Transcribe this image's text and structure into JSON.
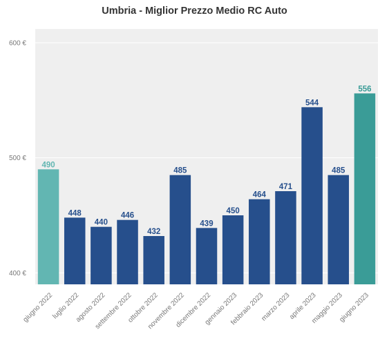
{
  "chart_data": {
    "type": "bar",
    "title": "Umbria - Miglior Prezzo Medio RC Auto",
    "xlabel": "",
    "ylabel": "",
    "categories": [
      "giugno 2022",
      "luglio 2022",
      "agosto 2022",
      "settembre 2022",
      "ottobre 2022",
      "novembre 2022",
      "dicembre 2022",
      "gennaio 2023",
      "febbraio 2023",
      "marzo 2023",
      "aprile 2023",
      "maggio 2023",
      "giugno 2023"
    ],
    "values": [
      490,
      448,
      440,
      446,
      432,
      485,
      439,
      450,
      464,
      471,
      544,
      485,
      556
    ],
    "data_labels": [
      "490",
      "448",
      "440",
      "446",
      "432",
      "485",
      "439",
      "450",
      "464",
      "471",
      "544",
      "485",
      "556"
    ],
    "bar_colors": [
      "#62b6b2",
      "#264f8c",
      "#264f8c",
      "#264f8c",
      "#264f8c",
      "#264f8c",
      "#264f8c",
      "#264f8c",
      "#264f8c",
      "#264f8c",
      "#264f8c",
      "#264f8c",
      "#3a9c97"
    ],
    "label_colors": [
      "#62b6b2",
      "#264f8c",
      "#264f8c",
      "#264f8c",
      "#264f8c",
      "#264f8c",
      "#264f8c",
      "#264f8c",
      "#264f8c",
      "#264f8c",
      "#264f8c",
      "#264f8c",
      "#3a9c97"
    ],
    "ylim": [
      390,
      612
    ],
    "yticks": [
      400,
      500,
      600
    ],
    "ytick_labels": [
      "400 €",
      "500 €",
      "600 €"
    ],
    "grid": true,
    "colors": {
      "background": "#efefef",
      "grid": "#ffffff"
    }
  }
}
